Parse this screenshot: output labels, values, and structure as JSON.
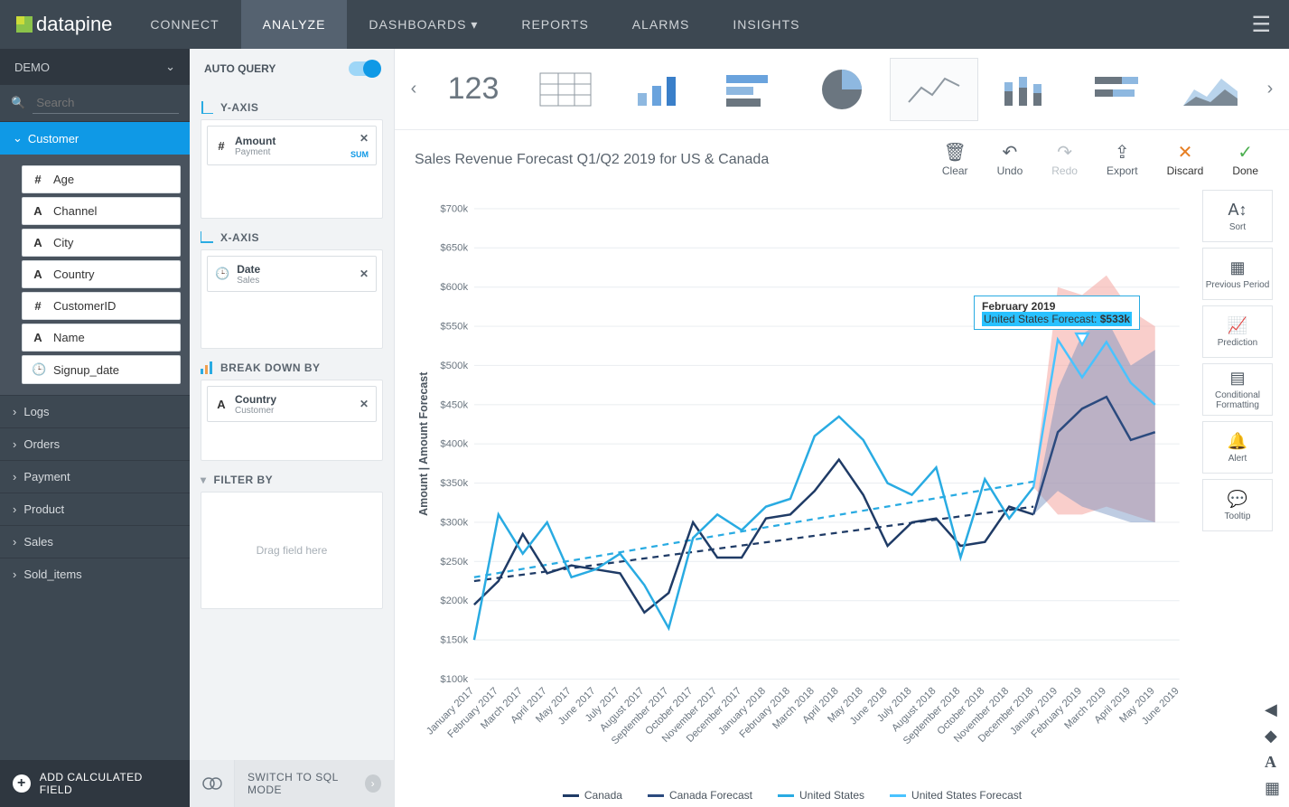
{
  "brand": "datapine",
  "nav": {
    "items": [
      "CONNECT",
      "ANALYZE",
      "DASHBOARDS",
      "REPORTS",
      "ALARMS",
      "INSIGHTS"
    ],
    "active": 1,
    "dropdown": [
      2
    ]
  },
  "sidebar": {
    "source": "DEMO",
    "searchPlaceholder": "Search",
    "openSection": "Customer",
    "fields": [
      {
        "type": "#",
        "name": "Age"
      },
      {
        "type": "A",
        "name": "Channel"
      },
      {
        "type": "A",
        "name": "City"
      },
      {
        "type": "A",
        "name": "Country"
      },
      {
        "type": "#",
        "name": "CustomerID"
      },
      {
        "type": "A",
        "name": "Name"
      },
      {
        "type": "clock",
        "name": "Signup_date"
      }
    ],
    "collapsed": [
      "Logs",
      "Orders",
      "Payment",
      "Product",
      "Sales",
      "Sold_items"
    ],
    "addCalc": "ADD CALCULATED FIELD"
  },
  "config": {
    "autoQuery": "AUTO QUERY",
    "yaxis": {
      "label": "Y-AXIS",
      "chip": {
        "title": "Amount",
        "sub": "Payment",
        "agg": "SUM"
      }
    },
    "xaxis": {
      "label": "X-AXIS",
      "chip": {
        "title": "Date",
        "sub": "Sales",
        "icon": "clock"
      }
    },
    "breakdown": {
      "label": "BREAK DOWN BY",
      "chip": {
        "title": "Country",
        "sub": "Customer",
        "icon": "A"
      }
    },
    "filter": {
      "label": "FILTER BY",
      "placeholder": "Drag field here"
    },
    "sqlSwitch": "SWITCH TO SQL MODE"
  },
  "ribbon": {
    "numberLabel": "123",
    "types": [
      "number",
      "table",
      "column",
      "bar-h",
      "pie",
      "line",
      "stacked",
      "bar-h2",
      "area"
    ],
    "selected": "line"
  },
  "toolbar": {
    "title": "Sales Revenue Forecast Q1/Q2 2019 for US & Canada",
    "actions": {
      "clear": "Clear",
      "undo": "Undo",
      "redo": "Redo",
      "export": "Export",
      "discard": "Discard",
      "done": "Done"
    }
  },
  "rightTools": [
    "Sort",
    "Previous Period",
    "Prediction",
    "Conditional Formatting",
    "Alert",
    "Tooltip"
  ],
  "chart": {
    "yTitle": "Amount | Amount Forecast",
    "ylim": [
      100,
      700
    ],
    "ytick": 50,
    "xCategories": [
      "January 2017",
      "February 2017",
      "March 2017",
      "April 2017",
      "May 2017",
      "June 2017",
      "July 2017",
      "August 2017",
      "September 2017",
      "October 2017",
      "November 2017",
      "December 2017",
      "January 2018",
      "February 2018",
      "March 2018",
      "April 2018",
      "May 2018",
      "June 2018",
      "July 2018",
      "August 2018",
      "September 2018",
      "October 2018",
      "November 2018",
      "December 2018",
      "January 2019",
      "February 2019",
      "March 2019",
      "April 2019",
      "May 2019",
      "June 2019"
    ],
    "historyCount": 24,
    "series": {
      "canada": {
        "color": "#1f3b66",
        "values": [
          195,
          225,
          285,
          235,
          245,
          240,
          235,
          185,
          210,
          300,
          255,
          255,
          305,
          310,
          340,
          380,
          335,
          270,
          300,
          305,
          270,
          275,
          320,
          310
        ]
      },
      "us": {
        "color": "#29abe2",
        "values": [
          150,
          310,
          260,
          300,
          230,
          240,
          260,
          220,
          165,
          280,
          310,
          290,
          320,
          330,
          410,
          435,
          405,
          350,
          335,
          370,
          255,
          355,
          305,
          345
        ]
      },
      "canadaForecast": {
        "color": "#2b4a7e",
        "values": [
          310,
          415,
          445,
          460,
          405,
          415
        ],
        "band": {
          "color": "#6f8fbf",
          "opacity": 0.45,
          "lower": [
            310,
            340,
            320,
            310,
            300,
            300
          ],
          "upper": [
            310,
            470,
            540,
            560,
            500,
            520
          ]
        }
      },
      "usForecast": {
        "color": "#49c3ff",
        "values": [
          345,
          533,
          485,
          530,
          478,
          450
        ],
        "band": {
          "color": "#f4a6a0",
          "opacity": 0.55,
          "lower": [
            345,
            310,
            310,
            320,
            310,
            300
          ],
          "upper": [
            345,
            600,
            590,
            615,
            570,
            550
          ]
        }
      },
      "trendCanada": {
        "color": "#1f3b66",
        "dash": true,
        "start": 225,
        "end": 320
      },
      "trendUS": {
        "color": "#29abe2",
        "dash": true,
        "start": 230,
        "end": 352
      }
    },
    "tooltip": {
      "x": 25,
      "title": "February 2019",
      "series": "United States Forecast",
      "valueLabel": "$533k",
      "markerY": 533
    },
    "legend": [
      "Canada",
      "Canada Forecast",
      "United States",
      "United States Forecast"
    ],
    "legendColors": [
      "#1f3b66",
      "#2b4a7e",
      "#29abe2",
      "#49c3ff"
    ],
    "background": "#ffffff",
    "gridColor": "#eceff2"
  }
}
